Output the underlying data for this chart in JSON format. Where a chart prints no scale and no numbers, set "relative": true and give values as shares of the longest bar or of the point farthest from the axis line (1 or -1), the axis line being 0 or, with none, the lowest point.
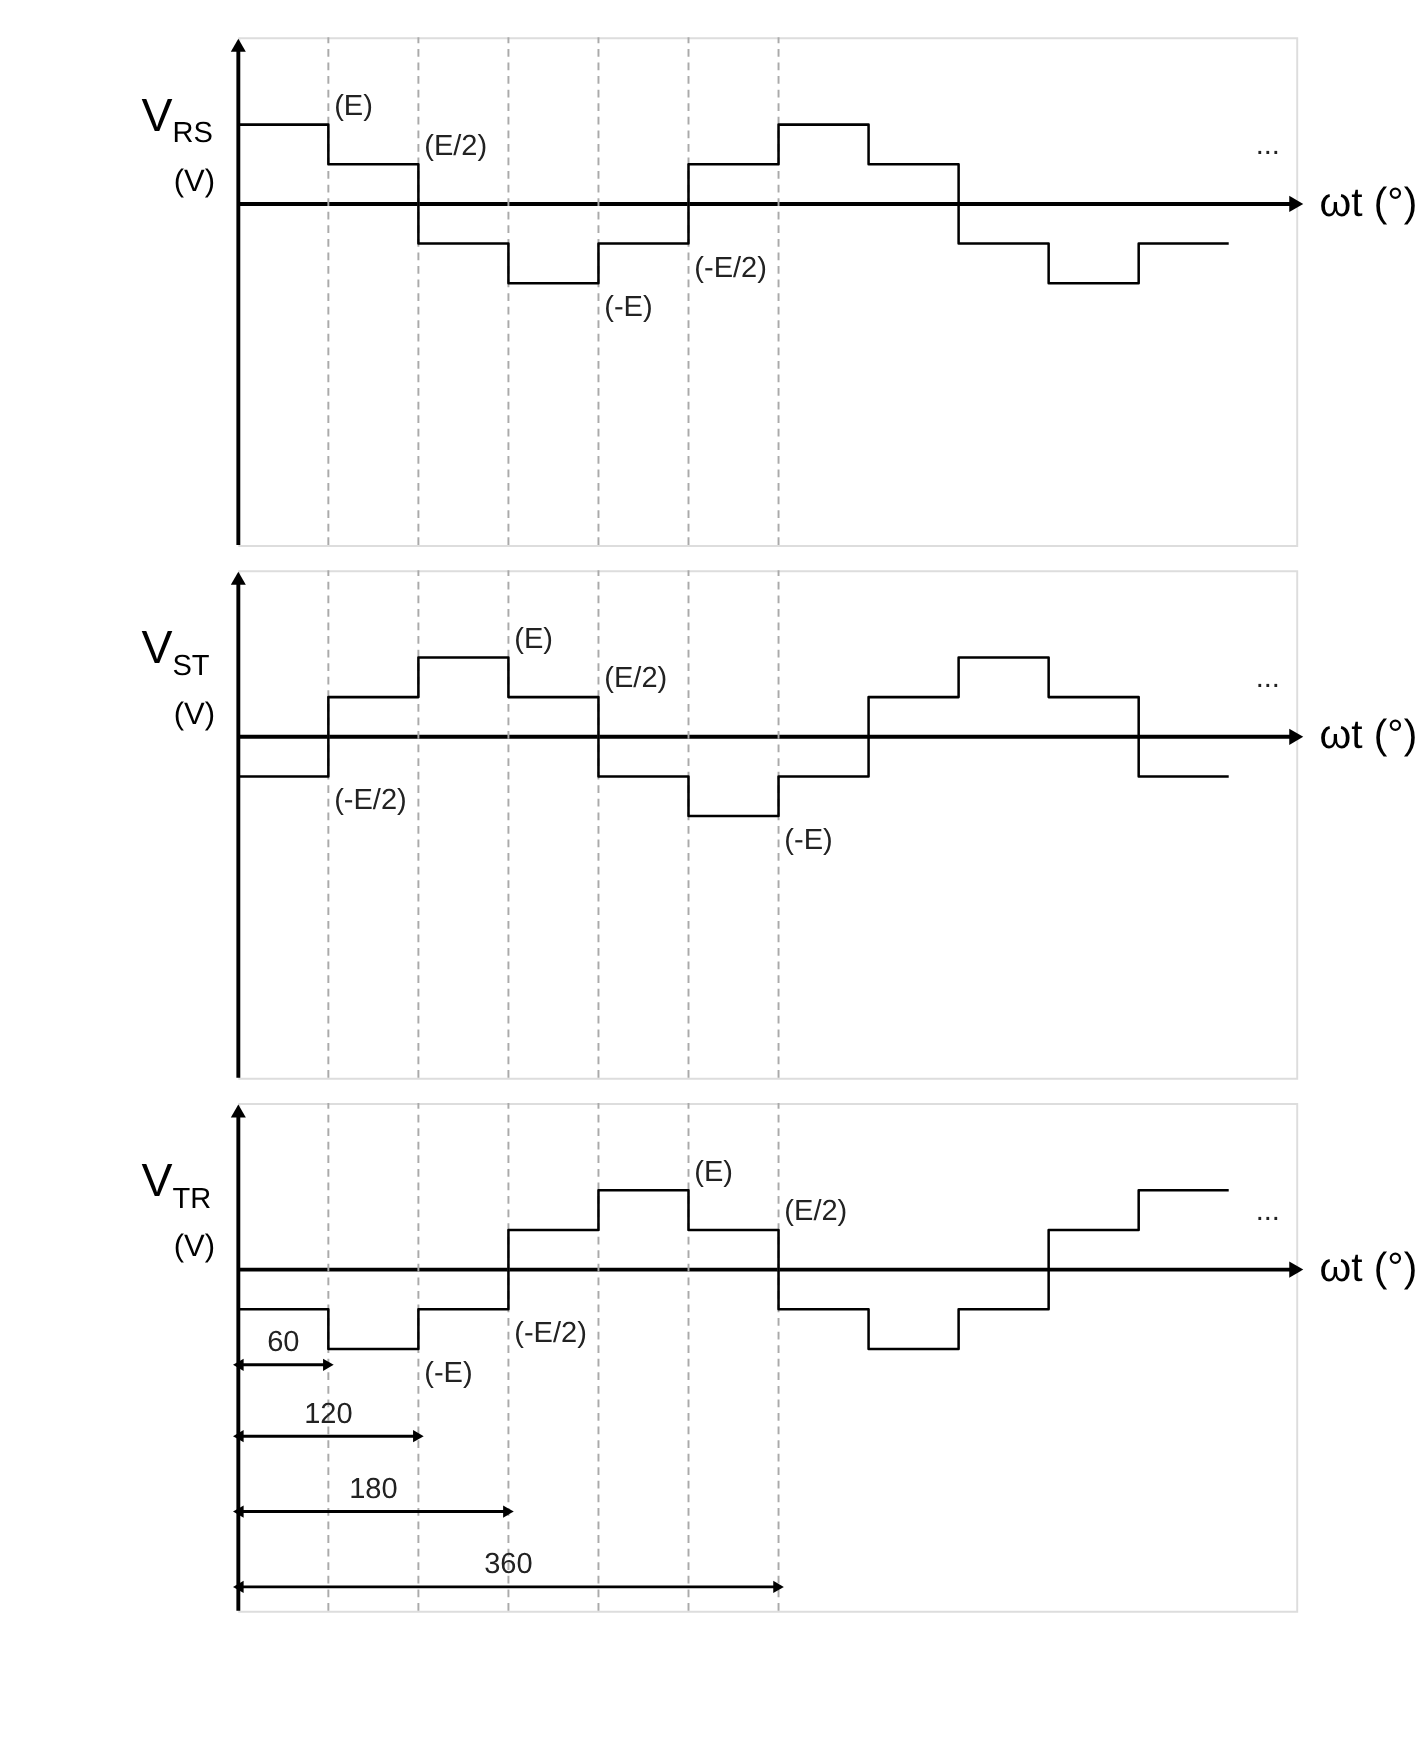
{
  "chart_data": [
    {
      "type": "step",
      "relative": true,
      "grid": "x",
      "ylabel": "V$_{RS}$ (V)",
      "xlabel": "ωt (°)",
      "categories": [
        null,
        null,
        null,
        null,
        null,
        null,
        null,
        null,
        null,
        null,
        null,
        null
      ],
      "series": [
        {
          "color": "#000000",
          "values": [
            1,
            1,
            0.5,
            -0.5,
            -1,
            -0.5,
            0.5,
            1,
            0.5,
            -0.5,
            -1,
            -0.5
          ]
        }
      ],
      "annotations": [
        "...",
        "(E)",
        "(E/2)",
        "(-E)",
        "(-E/2)"
      ]
    },
    {
      "type": "step",
      "relative": true,
      "grid": "x",
      "ylabel": "V$_{ST}$ (V)",
      "xlabel": "ωt (°)",
      "categories": [
        null,
        null,
        null,
        null,
        null,
        null,
        null,
        null,
        null,
        null,
        null,
        null
      ],
      "series": [
        {
          "color": "#000000",
          "values": [
            -0.5,
            -0.5,
            0.5,
            1,
            0.5,
            -0.5,
            -1,
            -0.5,
            0.5,
            1,
            0.5,
            -0.5
          ]
        }
      ],
      "annotations": [
        "...",
        "(-E/2)",
        "(E)",
        "(E/2)",
        "(-E)"
      ]
    },
    {
      "type": "step",
      "relative": true,
      "grid": "x",
      "ylabel": "V$_{TR}$ (V)",
      "xlabel": "ωt (°)",
      "categories": [
        null,
        null,
        null,
        null,
        null,
        null,
        null,
        null,
        null,
        null,
        null,
        null
      ],
      "series": [
        {
          "color": "#000000",
          "values": [
            -0.5,
            -0.5,
            -1,
            -0.5,
            0.5,
            1,
            0.5,
            -0.5,
            -1,
            -0.5,
            0.5,
            1
          ]
        }
      ],
      "annotations": [
        "...",
        "(-E)",
        "(-E/2)",
        "(E)",
        "(E/2)",
        "60",
        "120",
        "180",
        "360"
      ]
    }
  ]
}
